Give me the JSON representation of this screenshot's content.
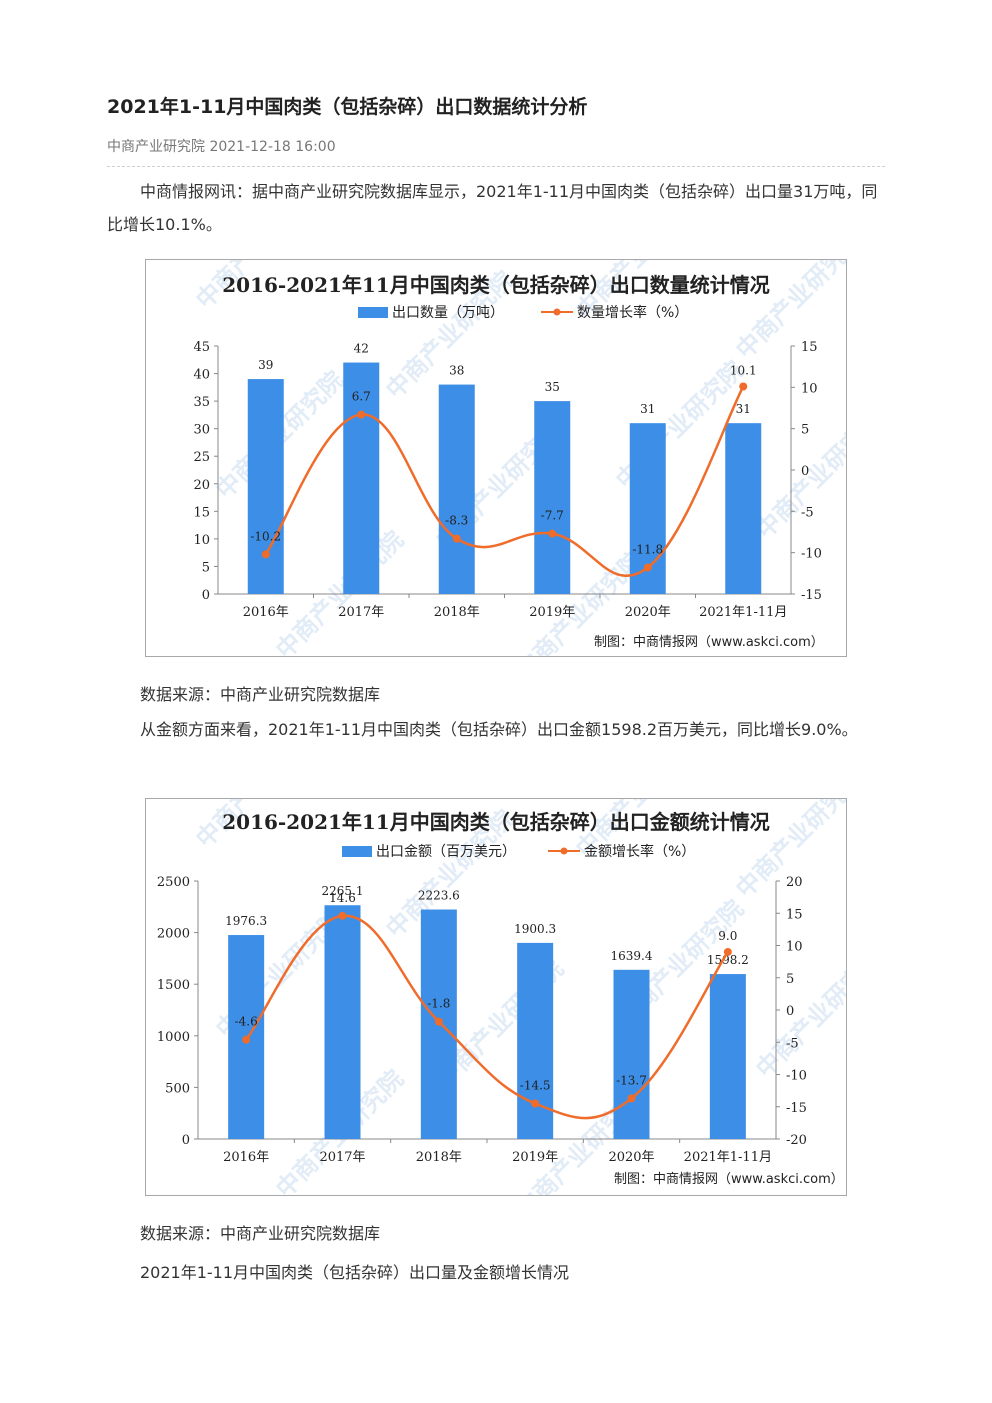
{
  "article": {
    "title": "2021年1-11月中国肉类（包括杂碎）出口数据统计分析",
    "meta": "中商产业研究院 2021-12-18 16:00",
    "para1": "中商情报网讯：据中商产业研究院数据库显示，2021年1-11月中国肉类（包括杂碎）出口量31万吨，同比增长10.1%。",
    "source1": "数据来源：中商产业研究院数据库",
    "para2": "从金额方面来看，2021年1-11月中国肉类（包括杂碎）出口金额1598.2百万美元，同比增长9.0%。",
    "source2": "数据来源：中商产业研究院数据库",
    "footer": "2021年1-11月中国肉类（包括杂碎）出口量及金额增长情况"
  },
  "watermark": "中商产业研究院",
  "colors": {
    "bar": "#3d8ee6",
    "line": "#ef6c2a"
  },
  "chart_data": [
    {
      "type": "bar",
      "title": "2016-2021年11月中国肉类（包括杂碎）出口数量统计情况",
      "categories": [
        "2016年",
        "2017年",
        "2018年",
        "2019年",
        "2020年",
        "2021年1-11月"
      ],
      "series": [
        {
          "name": "出口数量（万吨）",
          "type": "bar",
          "axis": "left",
          "values": [
            39,
            42,
            38,
            35,
            31,
            31
          ],
          "labels": [
            "39",
            "42",
            "38",
            "35",
            "31",
            "31"
          ]
        },
        {
          "name": "数量增长率（%）",
          "type": "line",
          "axis": "right",
          "values": [
            -10.2,
            6.7,
            -8.3,
            -7.7,
            -11.8,
            10.1
          ],
          "labels": [
            "-10.2",
            "6.7",
            "-8.3",
            "-7.7",
            "-11.8",
            "10.1"
          ]
        }
      ],
      "ylim": [
        0,
        45
      ],
      "yticks": [
        "0",
        "5",
        "10",
        "15",
        "20",
        "25",
        "30",
        "35",
        "40",
        "45"
      ],
      "y2lim": [
        -15,
        15
      ],
      "y2ticks": [
        "-15",
        "-10",
        "-5",
        "0",
        "5",
        "10",
        "15"
      ],
      "credit": "制图：中商情报网（www.askci.com）"
    },
    {
      "type": "bar",
      "title": "2016-2021年11月中国肉类（包括杂碎）出口金额统计情况",
      "categories": [
        "2016年",
        "2017年",
        "2018年",
        "2019年",
        "2020年",
        "2021年1-11月"
      ],
      "series": [
        {
          "name": "出口金额（百万美元）",
          "type": "bar",
          "axis": "left",
          "values": [
            1976.3,
            2265.1,
            2223.6,
            1900.3,
            1639.4,
            1598.2
          ],
          "labels": [
            "1976.3",
            "2265.1",
            "2223.6",
            "1900.3",
            "1639.4",
            "1598.2"
          ]
        },
        {
          "name": "金额增长率（%）",
          "type": "line",
          "axis": "right",
          "values": [
            -4.6,
            14.6,
            -1.8,
            -14.5,
            -13.7,
            9.0
          ],
          "labels": [
            "-4.6",
            "14.6",
            "-1.8",
            "-14.5",
            "-13.7",
            "9.0"
          ]
        }
      ],
      "ylim": [
        0,
        2500
      ],
      "yticks": [
        "0",
        "500",
        "1000",
        "1500",
        "2000",
        "2500"
      ],
      "y2lim": [
        -20,
        20
      ],
      "y2ticks": [
        "-20",
        "-15",
        "-10",
        "-5",
        "0",
        "5",
        "10",
        "15",
        "20"
      ],
      "credit": "制图：中商情报网（www.askci.com）"
    }
  ]
}
